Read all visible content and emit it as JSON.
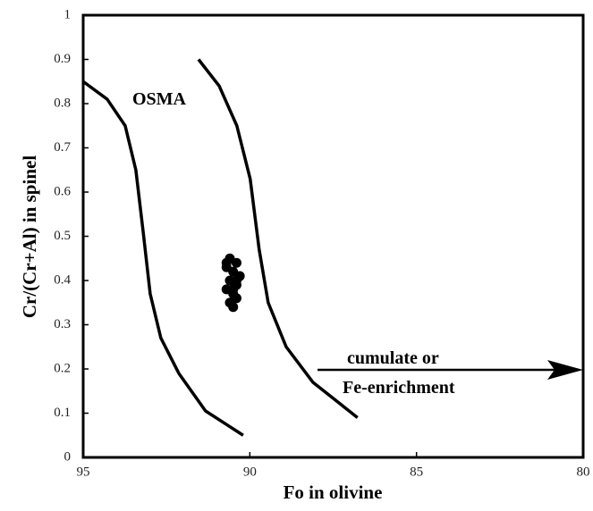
{
  "chart_data": {
    "type": "scatter",
    "x_label": "Fo in olivine",
    "y_label": "Cr/(Cr+Al) in spinel",
    "annotations": [
      "OSMA",
      "cumulate or",
      "Fe-enrichment"
    ],
    "xlim": [
      95,
      80
    ],
    "xticks": [
      95,
      90,
      85,
      80
    ],
    "ylim": [
      0,
      1
    ],
    "yticks": [
      0,
      0.1,
      0.2,
      0.3,
      0.4,
      0.5,
      0.6,
      0.7,
      0.8,
      0.9,
      1
    ],
    "series": [
      {
        "type": "line",
        "color": "#000000",
        "x": [
          95,
          94.28,
          93.74,
          93.42,
          93.2,
          92.99,
          92.67,
          92.13,
          91.33,
          90.2
        ],
        "values": [
          0.85,
          0.81,
          0.75,
          0.65,
          0.51,
          0.37,
          0.27,
          0.19,
          0.105,
          0.05
        ]
      },
      {
        "type": "line",
        "color": "#000000",
        "x": [
          91.54,
          90.92,
          90.39,
          89.99,
          89.72,
          89.45,
          88.91,
          88.11,
          86.77
        ],
        "values": [
          0.9,
          0.84,
          0.75,
          0.63,
          0.47,
          0.35,
          0.25,
          0.17,
          0.09
        ]
      },
      {
        "type": "scatter",
        "color": "#000000",
        "x": [
          90.6,
          90.4,
          90.7,
          90.5,
          90.3,
          90.6,
          90.4,
          90.7,
          90.5,
          90.4,
          90.6,
          90.5,
          90.7,
          90.4,
          90.5
        ],
        "values": [
          0.45,
          0.44,
          0.43,
          0.42,
          0.41,
          0.4,
          0.39,
          0.38,
          0.37,
          0.36,
          0.35,
          0.34,
          0.44,
          0.4,
          0.38
        ]
      }
    ]
  }
}
